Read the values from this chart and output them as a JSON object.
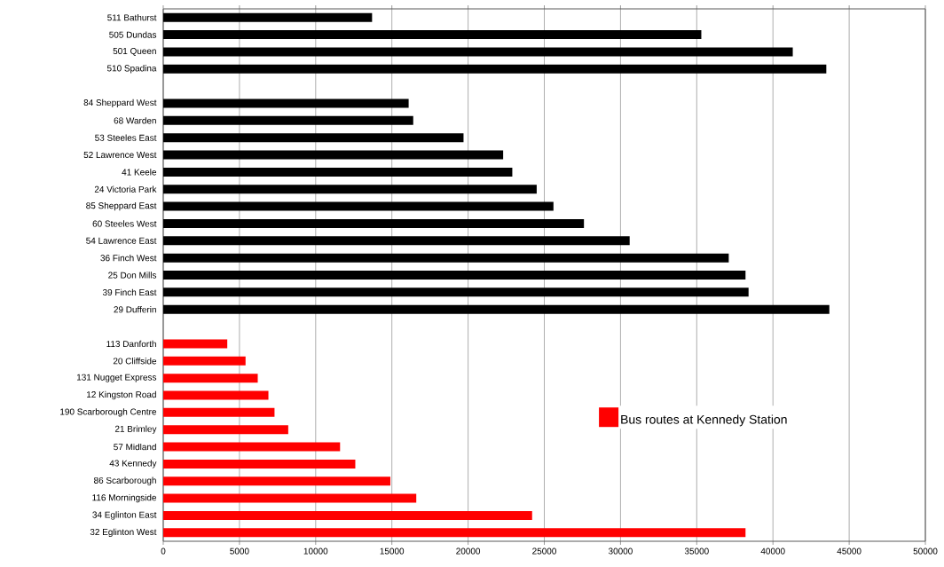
{
  "chart_data": {
    "type": "bar",
    "orientation": "horizontal",
    "categories": [
      "511 Bathurst",
      "505 Dundas",
      "501 Queen",
      "510 Spadina",
      null,
      "84 Sheppard West",
      "68 Warden",
      "53 Steeles East",
      "52 Lawrence West",
      "41 Keele",
      "24 Victoria Park",
      "85 Sheppard East",
      "60 Steeles West",
      "54 Lawrence East",
      "36 Finch West",
      "25 Don Mills",
      "39 Finch East",
      "29 Dufferin",
      null,
      "113 Danforth",
      "20 Cliffside",
      "131 Nugget Express",
      "12 Kingston Road",
      "190 Scarborough Centre",
      "21 Brimley",
      "57 Midland",
      "43 Kennedy",
      "86 Scarborough",
      "116 Morningside",
      "34 Eglinton East",
      "32 Eglinton West"
    ],
    "series": [
      {
        "color": "#000000",
        "values": [
          13700,
          35300,
          41300,
          43500,
          null,
          16100,
          16400,
          19700,
          22300,
          22900,
          24500,
          25600,
          27600,
          30600,
          37100,
          38200,
          38400,
          43700,
          null,
          null,
          null,
          null,
          null,
          null,
          null,
          null,
          null,
          null,
          null,
          null,
          null
        ]
      },
      {
        "name": "Bus routes at Kennedy Station",
        "color": "#ff0000",
        "values": [
          null,
          null,
          null,
          null,
          null,
          null,
          null,
          null,
          null,
          null,
          null,
          null,
          null,
          null,
          null,
          null,
          null,
          null,
          null,
          4200,
          5400,
          6200,
          6900,
          7300,
          8200,
          11600,
          12600,
          14900,
          16600,
          24200,
          38200
        ]
      }
    ],
    "xlim": [
      0,
      50000
    ],
    "xticks": [
      0,
      5000,
      10000,
      15000,
      20000,
      25000,
      30000,
      35000,
      40000,
      45000,
      50000
    ],
    "grid": "x",
    "legend": "right"
  }
}
